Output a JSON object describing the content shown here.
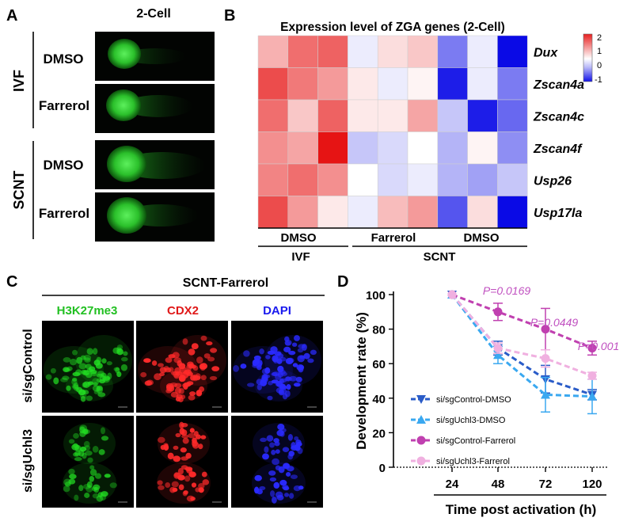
{
  "colors": {
    "green": "#22c022",
    "red": "#e01818",
    "blue": "#1a1aee",
    "dark_blue": "#2a5cc8",
    "light_blue": "#3aa8f0",
    "magenta": "#c040b0",
    "pink": "#f0b0e0",
    "pval": "#c050c0"
  },
  "panel_a": {
    "letter": "A",
    "column_title": "2-Cell",
    "group_labels": [
      "IVF",
      "SCNT"
    ],
    "row_labels": [
      "DMSO",
      "Farrerol",
      "DMSO",
      "Farrerol"
    ],
    "image_content": "green-fluorescent 2-cell embryos"
  },
  "panel_b": {
    "letter": "B",
    "title": "Expression level of ZGA genes (2-Cell)",
    "genes": [
      "Dux",
      "Zscan4a",
      "Zscan4c",
      "Zscan4f",
      "Usp26",
      "Usp17la"
    ],
    "legend_ticks": [
      "2",
      "1",
      "0",
      "-1"
    ],
    "legend_range": [
      -1.3,
      2.2
    ],
    "bottom_labels": [
      "DMSO",
      "Farrerol",
      "DMSO"
    ],
    "group_labels": [
      "IVF",
      "SCNT"
    ],
    "values": [
      [
        0.7,
        1.3,
        1.4,
        -0.1,
        0.3,
        0.5,
        -0.7,
        -0.1,
        -1.3
      ],
      [
        1.6,
        1.2,
        0.9,
        0.2,
        -0.1,
        0.1,
        -1.2,
        -0.1,
        -0.7
      ],
      [
        1.3,
        0.5,
        1.4,
        0.2,
        0.2,
        0.8,
        -0.3,
        -1.2,
        -0.8
      ],
      [
        1.0,
        0.8,
        2.1,
        -0.3,
        -0.2,
        0.0,
        -0.4,
        0.1,
        -0.6
      ],
      [
        1.1,
        1.3,
        1.0,
        0.0,
        -0.2,
        -0.1,
        -0.4,
        -0.5,
        -0.3
      ],
      [
        1.6,
        0.9,
        0.2,
        -0.1,
        0.6,
        0.9,
        -0.9,
        0.3,
        -1.3
      ]
    ]
  },
  "panel_c": {
    "letter": "C",
    "title": "SCNT-Farrerol",
    "channels": [
      "H3K27me3",
      "CDX2",
      "DAPI"
    ],
    "row_labels": [
      "si/sgControl",
      "si/sgUchl3"
    ],
    "image_content": "confocal images of embryos stained per channel"
  },
  "panel_d": {
    "letter": "D"
  },
  "chart_data": {
    "type": "line",
    "x": [
      24,
      48,
      72,
      120
    ],
    "xlabel": "Time post activation (h)",
    "ylabel": "Development rate (%)",
    "ylim": [
      0,
      100
    ],
    "yticks": [
      0,
      20,
      40,
      60,
      80,
      100
    ],
    "xtick_labels": [
      "24",
      "48",
      "72",
      "120"
    ],
    "series": [
      {
        "name": "si/sgControl-DMSO",
        "marker": "triangle-down",
        "color": "#2a5cc8",
        "values": [
          100,
          69,
          51,
          42
        ],
        "errors": [
          0,
          4,
          8,
          3
        ]
      },
      {
        "name": "si/sgUchl3-DMSO",
        "marker": "triangle-up",
        "color": "#3aa8f0",
        "values": [
          100,
          65,
          42,
          41
        ],
        "errors": [
          0,
          5,
          10,
          10
        ]
      },
      {
        "name": "si/sgControl-Farrerol",
        "marker": "circle",
        "color": "#c040b0",
        "values": [
          100,
          90,
          80,
          69
        ],
        "errors": [
          0,
          5,
          12,
          4
        ]
      },
      {
        "name": "si/sgUchl3-Farrerol",
        "marker": "circle",
        "color": "#f0b0e0",
        "values": [
          100,
          69,
          63,
          53
        ],
        "errors": [
          0,
          3,
          5,
          2
        ]
      }
    ],
    "annotations": [
      "P=0.0169",
      "P=0.0449",
      "P=0.001"
    ],
    "legend_position": "bottom-left"
  }
}
